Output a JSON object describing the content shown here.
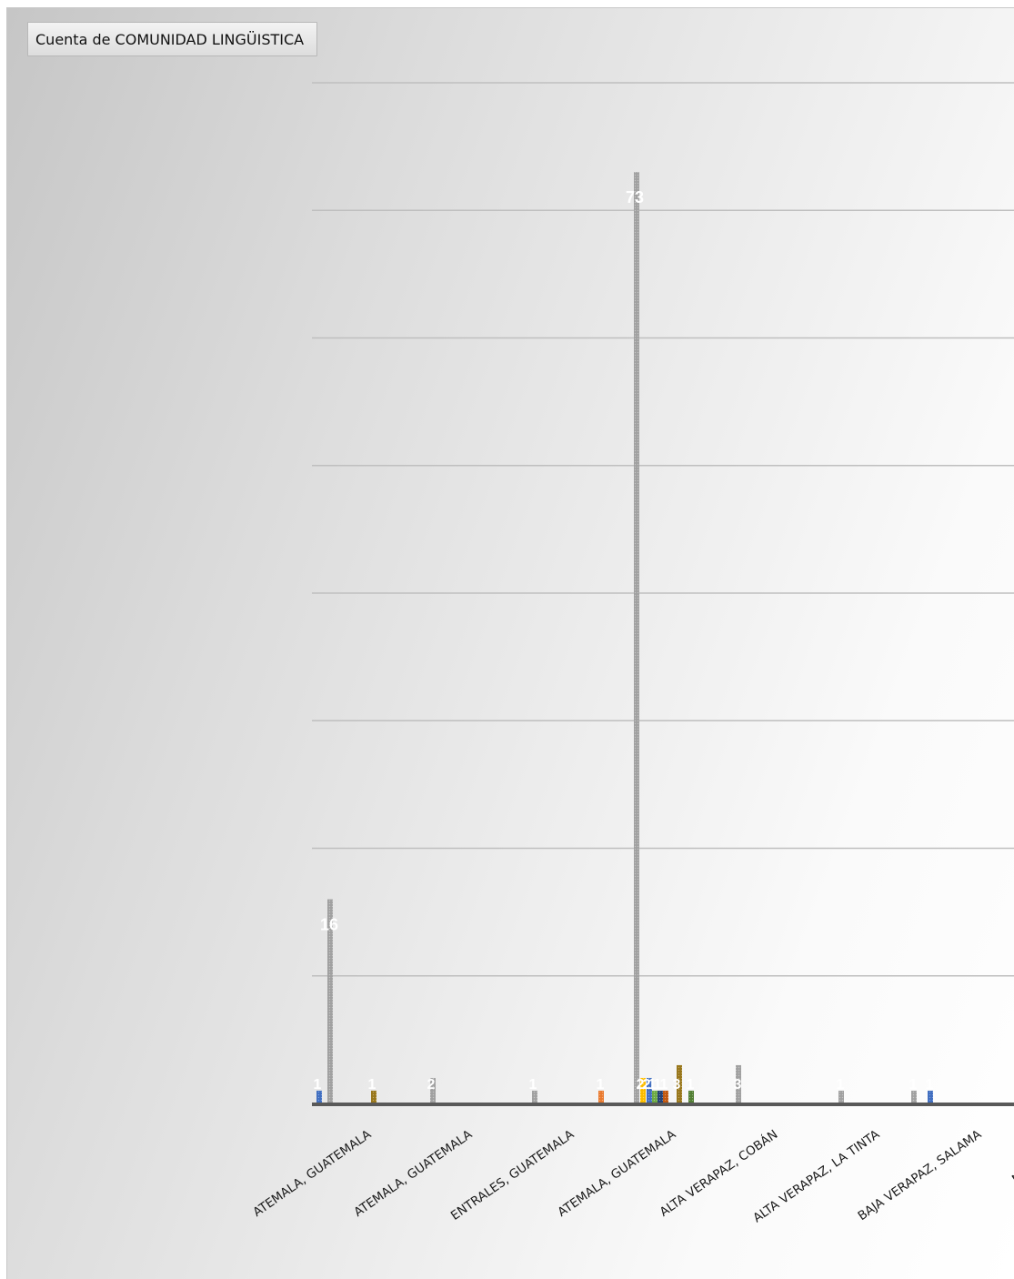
{
  "field_button": {
    "label": "Cuenta de COMUNIDAD LINGÜISTICA"
  },
  "chart_data": {
    "type": "bar",
    "ylim": [
      0,
      80
    ],
    "grid": true,
    "categories": [
      "ATEMALA, GUATEMALA",
      "ATEMALA, GUATEMALA",
      "ENTRALES, GUATEMALA",
      "ATEMALA, GUATEMALA",
      "ALTA VERAPAZ, COBÁN",
      "ALTA VERAPAZ, LA TINTA",
      "BAJA VERAPAZ, SALAMA",
      "NGO, CHIMAL"
    ],
    "bars": [
      {
        "value": 1,
        "label": "1",
        "color": "#4472c4"
      },
      {
        "value": 16,
        "label": "16",
        "color": "#a5a5a5"
      },
      {
        "value": 1,
        "label": "1",
        "color": "#9c7a1e"
      },
      {
        "value": 2,
        "label": "2",
        "color": "#a5a5a5"
      },
      {
        "value": 1,
        "label": "1",
        "color": "#a5a5a5"
      },
      {
        "value": 1,
        "label": "1",
        "color": "#ed7d31"
      },
      {
        "value": 73,
        "label": "73",
        "color": "#a5a5a5"
      },
      {
        "value": 2,
        "label": "2",
        "color": "#ffc000"
      },
      {
        "value": 2,
        "label": "2",
        "color": "#4472c4"
      },
      {
        "value": 1,
        "label": "1",
        "color": "#70ad47"
      },
      {
        "value": 1,
        "label": "1",
        "color": "#264478"
      },
      {
        "value": 1,
        "label": "1",
        "color": "#c55a11"
      },
      {
        "value": 3,
        "label": "3",
        "color": "#9c7a1e"
      },
      {
        "value": 1,
        "label": "1",
        "color": "#548235"
      },
      {
        "value": 3,
        "label": "3",
        "color": "#a5a5a5"
      },
      {
        "value": 1,
        "label": "1",
        "color": "#a5a5a5"
      },
      {
        "value": 1,
        "label": "1",
        "color": "#a5a5a5"
      },
      {
        "value": 1,
        "label": "1",
        "color": "#4472c4"
      }
    ]
  }
}
